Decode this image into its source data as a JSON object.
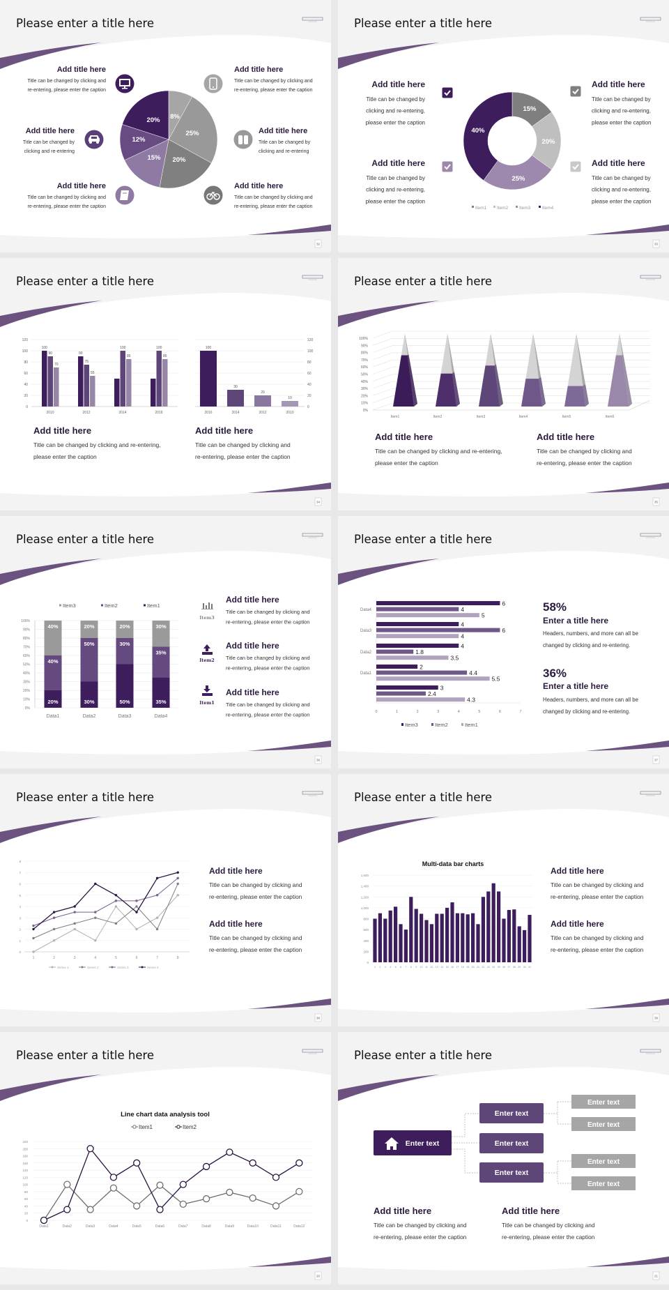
{
  "slides": [
    {
      "page": "32",
      "title": "Please enter a title here",
      "icons": [
        "monitor-icon",
        "car-icon",
        "book-icon",
        "phone-icon",
        "binoculars-icon",
        "bicycle-icon"
      ],
      "blocks": [
        {
          "title": "Add title here",
          "caption": [
            "Title can be changed by clicking and",
            "re-entering, please enter the caption"
          ]
        },
        {
          "title": "Add title here",
          "caption": [
            "Title can be changed by",
            "clicking and re-entering"
          ]
        },
        {
          "title": "Add title here",
          "caption": [
            "Title can be changed by clicking and",
            "re-entering, please enter the caption"
          ]
        },
        {
          "title": "Add title here",
          "caption": [
            "Title can be changed by clicking and",
            "re-entering, please enter the caption"
          ]
        },
        {
          "title": "Add title here",
          "caption": [
            "Title can be changed by",
            "clicking and re-entering"
          ]
        },
        {
          "title": "Add title here",
          "caption": [
            "Title can be changed by clicking and",
            "re-entering, please enter the caption"
          ]
        }
      ]
    },
    {
      "page": "33",
      "title": "Please enter a title here",
      "icons": [
        "checkbox-icon",
        "checkbox-icon",
        "checkbox-icon",
        "checkbox-icon"
      ],
      "checkbox_colors": [
        "#3d1d5c",
        "#7f7f7f",
        "#9d89ad",
        "#c8c8c8"
      ],
      "blocks": [
        {
          "title": "Add title here",
          "caption": [
            "Title can be changed by",
            "clicking and re-entering,",
            "please enter the caption"
          ]
        },
        {
          "title": "Add title here",
          "caption": [
            "Title can be changed by",
            "clicking and re-entering,",
            "please enter the caption"
          ]
        },
        {
          "title": "Add title here",
          "caption": [
            "Title can be changed by",
            "clicking and re-entering,",
            "please enter the caption"
          ]
        },
        {
          "title": "Add title here",
          "caption": [
            "Title can be changed by",
            "clicking and re-entering,",
            "please enter the caption"
          ]
        }
      ]
    },
    {
      "page": "34",
      "title": "Please enter a title here",
      "blocks": [
        {
          "title": "Add title here",
          "caption": [
            "Title can be changed by clicking and re-entering,",
            "please enter the caption"
          ]
        },
        {
          "title": "Add title here",
          "caption": [
            "Title can be changed by clicking and",
            "re-entering, please enter the caption"
          ]
        }
      ]
    },
    {
      "page": "35",
      "title": "Please enter a title here",
      "blocks": [
        {
          "title": "Add title here",
          "caption": [
            "Title can be changed by clicking and re-entering,",
            "please enter the caption"
          ]
        },
        {
          "title": "Add title here",
          "caption": [
            "Title can be changed by clicking and",
            "re-entering, please enter the caption"
          ]
        }
      ]
    },
    {
      "page": "36",
      "title": "Please enter a title here",
      "icons": [
        "bar-chart-icon",
        "upload-icon",
        "download-icon"
      ],
      "icon_labels": [
        "Item3",
        "Item2",
        "Item1"
      ],
      "blocks": [
        {
          "title": "Add title here",
          "caption": [
            "Title can be changed by clicking and",
            "re-entering, please enter the caption"
          ]
        },
        {
          "title": "Add title here",
          "caption": [
            "Title can be changed by clicking and",
            "re-entering, please enter the caption"
          ]
        },
        {
          "title": "Add title here",
          "caption": [
            "Title can be changed by clicking and",
            "re-entering, please enter the caption"
          ]
        }
      ]
    },
    {
      "page": "37",
      "title": "Please enter a title here",
      "stats": [
        {
          "value": "58%",
          "title": "Enter a title here",
          "caption": [
            "Headers, numbers, and more can all be",
            "changed by clicking and re-entering."
          ]
        },
        {
          "value": "36%",
          "title": "Enter a title here",
          "caption": [
            "Headers, numbers, and more can all be",
            "changed by clicking and re-entering."
          ]
        }
      ]
    },
    {
      "page": "38",
      "title": "Please enter a title here",
      "blocks": [
        {
          "title": "Add title here",
          "caption": [
            "Title can be changed by clicking and",
            "re-entering, please enter the caption"
          ]
        },
        {
          "title": "Add title here",
          "caption": [
            "Title can be changed by clicking and",
            "re-entering, please enter the caption"
          ]
        }
      ]
    },
    {
      "page": "39",
      "title": "Please enter a title here",
      "blocks": [
        {
          "title": "Add title here",
          "caption": [
            "Title can be changed by clicking and",
            "re-entering, please enter the caption"
          ]
        },
        {
          "title": "Add title here",
          "caption": [
            "Title can be changed by clicking and",
            "re-entering, please enter the caption"
          ]
        }
      ]
    },
    {
      "page": "20",
      "title": "Please enter a title here"
    },
    {
      "page": "21",
      "title": "Please enter a title here",
      "diagram": {
        "root": "Enter text",
        "root_icon": "home-icon",
        "middle": [
          "Enter text",
          "Enter text",
          "Enter text"
        ],
        "leaves": [
          "Enter text",
          "Enter text",
          "Enter text",
          "Enter text"
        ]
      },
      "blocks": [
        {
          "title": "Add title here",
          "caption": [
            "Title can be changed by clicking and",
            "re-entering, please enter the caption"
          ]
        },
        {
          "title": "Add title here",
          "caption": [
            "Title can be changed by clicking and",
            "re-entering, please enter the caption"
          ]
        }
      ]
    }
  ],
  "chart_data": [
    {
      "type": "pie",
      "values": [
        8,
        25,
        20,
        15,
        12,
        20
      ],
      "labels": [
        "8%",
        "25%",
        "20%",
        "15%",
        "12%",
        "20%"
      ],
      "colors": [
        "#a6a6a6",
        "#999999",
        "#808080",
        "#8e7aa3",
        "#674b82",
        "#3d1d5c"
      ]
    },
    {
      "type": "pie",
      "variant": "donut",
      "categories": [
        "Item1",
        "Item2",
        "Item3",
        "Item4"
      ],
      "values": [
        15,
        20,
        25,
        40
      ],
      "labels": [
        "15%",
        "20%",
        "25%",
        "40%"
      ],
      "colors": [
        "#7f7f7f",
        "#bfbfbf",
        "#9d89ad",
        "#3d1d5c"
      ],
      "legend": "bottom"
    },
    {
      "type": "bar",
      "categories": [
        "2010",
        "2012",
        "2014",
        "2016"
      ],
      "series": [
        {
          "values": [
            100,
            90,
            50,
            50
          ],
          "labels": [
            "100",
            "90",
            "",
            ""
          ]
        },
        {
          "values": [
            90,
            75,
            100,
            100
          ],
          "labels": [
            "90",
            "75",
            "100",
            "100"
          ]
        },
        {
          "values": [
            70,
            55,
            85,
            85
          ],
          "labels": [
            "70",
            "55",
            "85",
            "85"
          ]
        }
      ],
      "colors": [
        "#3d1d5c",
        "#5e4678",
        "#9886a8"
      ],
      "ylim": [
        0,
        120
      ],
      "yticks": [
        "0",
        "20",
        "40",
        "60",
        "80",
        "100",
        "120"
      ],
      "grid": true
    },
    {
      "type": "bar",
      "categories": [
        "2016",
        "2014",
        "2012",
        "2010"
      ],
      "values": [
        100,
        30,
        20,
        10
      ],
      "labels": [
        "100",
        "30",
        "20",
        "10"
      ],
      "colors": [
        "#3d1d5c",
        "#5e4678",
        "#8a77a0",
        "#a496b4"
      ],
      "ylim": [
        0,
        120
      ],
      "yticks": [
        "0",
        "20",
        "40",
        "60",
        "80",
        "100",
        "120"
      ],
      "axis": "right",
      "grid": true
    },
    {
      "type": "bar",
      "variant": "3d-pyramid",
      "categories": [
        "Item1",
        "Item2",
        "Item3",
        "Item4",
        "Item5",
        "Item6"
      ],
      "values": [
        70,
        45,
        56,
        38,
        28,
        70
      ],
      "colors": [
        "#3b1c58",
        "#4e2f6b",
        "#5e4678",
        "#6f5889",
        "#7e6a96",
        "#9a88ab"
      ],
      "ylim": [
        0,
        100
      ],
      "yticks": [
        "0%",
        "10%",
        "20%",
        "30%",
        "40%",
        "50%",
        "60%",
        "70%",
        "80%",
        "90%",
        "100%"
      ],
      "grid": true
    },
    {
      "type": "bar",
      "variant": "stacked-100",
      "categories": [
        "Data1",
        "Data2",
        "Data3",
        "Data4"
      ],
      "series": [
        {
          "name": "Item1",
          "values": [
            20,
            30,
            50,
            35
          ],
          "labels": [
            "20%",
            "30%",
            "50%",
            "35%"
          ],
          "color": "#3d1d5c"
        },
        {
          "name": "Item2",
          "values": [
            40,
            50,
            30,
            35
          ],
          "labels": [
            "40%",
            "50%",
            "30%",
            "35%"
          ],
          "color": "#654a7f"
        },
        {
          "name": "Item3",
          "values": [
            40,
            20,
            20,
            30
          ],
          "labels": [
            "40%",
            "20%",
            "20%",
            "30%"
          ],
          "color": "#9a9a9a"
        }
      ],
      "legend_order": [
        "Item3",
        "Item2",
        "Item1"
      ],
      "legend": "top",
      "ylim": [
        0,
        100
      ],
      "yticks": [
        "0%",
        "10%",
        "20%",
        "30%",
        "40%",
        "50%",
        "60%",
        "70%",
        "80%",
        "90%",
        "100%"
      ],
      "grid": true
    },
    {
      "type": "bar",
      "orientation": "horizontal",
      "categories": [
        "",
        "Data1",
        "Data2",
        "Data3",
        "Data4"
      ],
      "series": [
        {
          "name": "Item3",
          "values": [
            3,
            2,
            4,
            4,
            6
          ],
          "labels": [
            "3",
            "2",
            "4",
            "4",
            "6"
          ],
          "color": "#3d1d5c"
        },
        {
          "name": "Item2",
          "values": [
            2.4,
            4.4,
            1.8,
            6,
            4
          ],
          "labels": [
            "2.4",
            "4.4",
            "1.8",
            "6",
            "4"
          ],
          "color": "#6f5889"
        },
        {
          "name": "Item1",
          "values": [
            4.3,
            5.5,
            3.5,
            4,
            5
          ],
          "labels": [
            "4.3",
            "5.5",
            "3.5",
            "4",
            "5"
          ],
          "color": "#b0a3bd"
        }
      ],
      "xlim": [
        0,
        7
      ],
      "xticks": [
        "0",
        "1",
        "2",
        "3",
        "4",
        "5",
        "6",
        "7"
      ],
      "legend": "bottom"
    },
    {
      "type": "line",
      "x": [
        "1",
        "2",
        "3",
        "4",
        "5",
        "6",
        "7",
        "8"
      ],
      "series": [
        {
          "name": "Series 1",
          "values": [
            0,
            1,
            2,
            1,
            4,
            2,
            3,
            5
          ],
          "color": "#b3b3b3"
        },
        {
          "name": "Series 2",
          "values": [
            1.2,
            2,
            2.5,
            3,
            2.5,
            4,
            2,
            6
          ],
          "color": "#7f7f7f"
        },
        {
          "name": "Series 3",
          "values": [
            2.3,
            3,
            3.5,
            3.5,
            4.5,
            4.5,
            5,
            6.5
          ],
          "color": "#7a6390"
        },
        {
          "name": "Series 4",
          "values": [
            2,
            3.5,
            4,
            6,
            5,
            3.5,
            6.5,
            7
          ],
          "color": "#2e1545"
        }
      ],
      "ylim": [
        0,
        8
      ],
      "yticks": [
        "0",
        "1",
        "2",
        "3",
        "4",
        "5",
        "6",
        "7",
        "8"
      ],
      "legend": "bottom",
      "grid": true
    },
    {
      "type": "bar",
      "title": "Multi-data bar charts",
      "categories": [
        "1",
        "2",
        "3",
        "4",
        "5",
        "6",
        "7",
        "8",
        "9",
        "10",
        "11",
        "12",
        "13",
        "14",
        "15",
        "16",
        "17",
        "18",
        "19",
        "20",
        "21",
        "22",
        "23",
        "24",
        "25",
        "26",
        "27",
        "28",
        "29",
        "30",
        "31"
      ],
      "values": [
        800,
        900,
        800,
        950,
        1020,
        700,
        600,
        1200,
        980,
        890,
        775,
        700,
        890,
        890,
        1000,
        1100,
        900,
        900,
        880,
        900,
        700,
        1200,
        1300,
        1450,
        1300,
        800,
        960,
        970,
        660,
        590,
        870
      ],
      "color": "#3d1d5c",
      "ylim": [
        0,
        1600
      ],
      "yticks": [
        "0",
        "200",
        "400",
        "600",
        "800",
        "1,000",
        "1,200",
        "1,400",
        "1,600"
      ],
      "grid": true
    },
    {
      "type": "line",
      "title": "Line chart data analysis tool",
      "x": [
        "Data1",
        "Data2",
        "Data3",
        "Data4",
        "Data5",
        "Data6",
        "Data7",
        "Data8",
        "Data9",
        "Data10",
        "Data11",
        "Data12"
      ],
      "series": [
        {
          "name": "Item1",
          "values": [
            0,
            100,
            30,
            90,
            40,
            98,
            45,
            60,
            78,
            62,
            40,
            80
          ],
          "color": "#6e6e6e"
        },
        {
          "name": "Item2",
          "values": [
            0,
            30,
            200,
            120,
            160,
            30,
            100,
            150,
            190,
            160,
            120,
            160
          ],
          "color": "#2a1240"
        }
      ],
      "ylim": [
        0,
        220
      ],
      "yticks": [
        "0",
        "20",
        "40",
        "60",
        "80",
        "100",
        "120",
        "140",
        "160",
        "180",
        "200",
        "220"
      ],
      "legend": "top",
      "grid": true
    }
  ]
}
